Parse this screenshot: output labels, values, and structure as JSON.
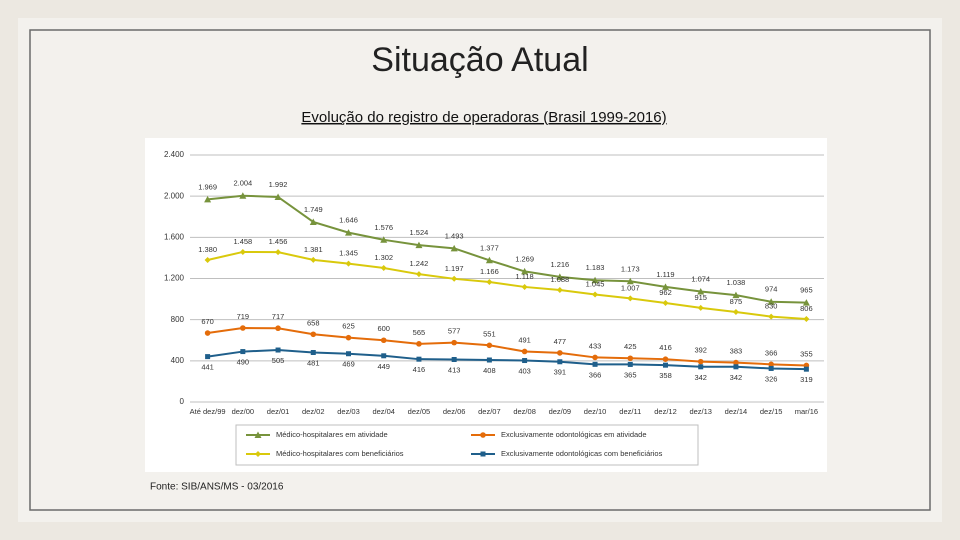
{
  "title": "Situação Atual",
  "source": "Fonte: SIB/ANS/MS - 03/2016",
  "chart_data": {
    "type": "line",
    "title": "Evolução do registro de operadoras (Brasil 1999-2016)",
    "categories": [
      "Até dez/99",
      "dez/00",
      "dez/01",
      "dez/02",
      "dez/03",
      "dez/04",
      "dez/05",
      "dez/06",
      "dez/07",
      "dez/08",
      "dez/09",
      "dez/10",
      "dez/11",
      "dez/12",
      "dez/13",
      "dez/14",
      "dez/15",
      "mar/16"
    ],
    "ylim": [
      0,
      2400
    ],
    "yticks": [
      0,
      400,
      800,
      {
        "value": 1200,
        "label": "1.200"
      },
      {
        "value": 1600,
        "label": "1.600"
      },
      {
        "value": 2000,
        "label": "2.000"
      },
      {
        "value": 2400,
        "label": "2.400"
      }
    ],
    "grid": true,
    "series": [
      {
        "name": "Médico-hospitalares em atividade",
        "color": "#77933c",
        "marker": "triangle",
        "values": [
          1969,
          2004,
          1992,
          1749,
          1646,
          1576,
          1524,
          1493,
          1377,
          1269,
          1216,
          1183,
          1173,
          1119,
          1074,
          1038,
          974,
          965
        ],
        "value_labels": [
          "1.969",
          "2.004",
          "1.992",
          "1.749",
          "1.646",
          "1.576",
          "1.524",
          "1.493",
          "1.377",
          "1.269",
          "1.216",
          "1.183",
          "1.173",
          "1.119",
          "1.074",
          "1.038",
          "974",
          "965"
        ]
      },
      {
        "name": "Exclusivamente odontológicas em atividade",
        "color": "#e46c0a",
        "marker": "circle",
        "values": [
          670,
          719,
          717,
          658,
          625,
          600,
          565,
          577,
          551,
          491,
          477,
          433,
          425,
          416,
          392,
          383,
          366,
          355
        ]
      },
      {
        "name": "Médico-hospitalares com beneficiários",
        "color": "#d9c90c",
        "marker": "diamond",
        "values": [
          1380,
          1458,
          1456,
          1381,
          1345,
          1302,
          1242,
          1197,
          1166,
          1118,
          1088,
          1045,
          1007,
          962,
          915,
          875,
          830,
          806
        ],
        "value_labels": [
          "1.380",
          "1.458",
          "1.456",
          "1.381",
          "1.345",
          "1.302",
          "1.242",
          "1.197",
          "1.166",
          "1.118",
          "1.088",
          "1.045",
          "1.007",
          "962",
          "915",
          "875",
          "830",
          "806"
        ]
      },
      {
        "name": "Exclusivamente odontológicas com beneficiários",
        "color": "#1f5f8b",
        "marker": "square",
        "values": [
          441,
          490,
          505,
          481,
          469,
          449,
          416,
          413,
          408,
          403,
          391,
          366,
          365,
          358,
          342,
          342,
          326,
          319
        ]
      }
    ]
  }
}
